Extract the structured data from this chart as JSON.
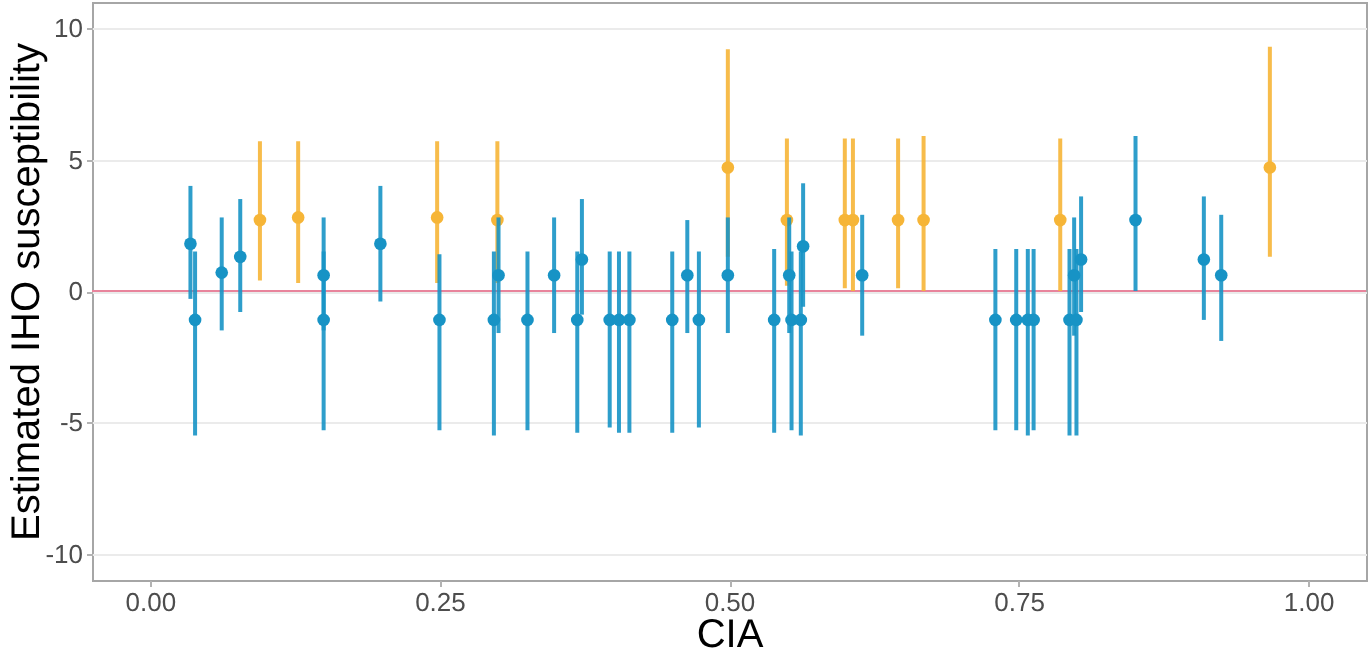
{
  "chart_data": {
    "type": "scatter",
    "xlabel": "CIA",
    "ylabel": "Estimated IHO susceptibility",
    "xlim": [
      -0.05,
      1.05
    ],
    "ylim": [
      -11,
      11
    ],
    "xticks": [
      {
        "value": 0,
        "label": "0.00"
      },
      {
        "value": 0.25,
        "label": "0.25"
      },
      {
        "value": 0.5,
        "label": "0.50"
      },
      {
        "value": 0.75,
        "label": "0.75"
      },
      {
        "value": 1,
        "label": "1.00"
      }
    ],
    "yticks": [
      -10,
      -5,
      0,
      5,
      10
    ],
    "grid": "y",
    "marker": "circle",
    "ref_lines": [
      {
        "axis": "y",
        "value": 0,
        "color": "#e8849c"
      }
    ],
    "series": [
      {
        "color": "#f6b537",
        "x": [
          0.095,
          0.128,
          0.248,
          0.3,
          0.499,
          0.55,
          0.6,
          0.607,
          0.646,
          0.668,
          0.786,
          0.967
        ],
        "values": [
          2.7,
          2.8,
          2.8,
          2.7,
          4.7,
          2.7,
          2.7,
          2.7,
          2.7,
          2.7,
          2.7,
          4.7
        ],
        "errors": [
          [
            0.4,
            5.7
          ],
          [
            0.3,
            5.7
          ],
          [
            0.3,
            5.7
          ],
          [
            0.3,
            5.7
          ],
          [
            1.3,
            9.2
          ],
          [
            0.2,
            5.8
          ],
          [
            0.1,
            5.8
          ],
          [
            0.0,
            5.8
          ],
          [
            0.1,
            5.8
          ],
          [
            0.0,
            5.9
          ],
          [
            0.0,
            5.8
          ],
          [
            1.3,
            9.3
          ]
        ]
      },
      {
        "color": "#1793c5",
        "x": [
          0.035,
          0.039,
          0.062,
          0.078,
          0.15,
          0.15,
          0.199,
          0.25,
          0.297,
          0.301,
          0.326,
          0.349,
          0.369,
          0.373,
          0.397,
          0.405,
          0.414,
          0.451,
          0.464,
          0.474,
          0.499,
          0.539,
          0.552,
          0.554,
          0.562,
          0.564,
          0.615,
          0.73,
          0.748,
          0.758,
          0.763,
          0.794,
          0.798,
          0.8,
          0.804,
          0.851,
          0.91,
          0.925
        ],
        "values": [
          1.8,
          -1.1,
          0.7,
          1.3,
          0.6,
          -1.1,
          1.8,
          -1.1,
          -1.1,
          0.6,
          -1.1,
          0.6,
          -1.1,
          1.2,
          -1.1,
          -1.1,
          -1.1,
          -1.1,
          0.6,
          -1.1,
          0.6,
          -1.1,
          0.6,
          -1.1,
          -1.1,
          1.7,
          0.6,
          -1.1,
          -1.1,
          -1.1,
          -1.1,
          -1.1,
          0.6,
          -1.1,
          1.2,
          2.7,
          1.2,
          0.6
        ],
        "errors": [
          [
            -0.3,
            4.0
          ],
          [
            -5.5,
            1.5
          ],
          [
            -1.5,
            2.8
          ],
          [
            -0.8,
            3.5
          ],
          [
            -1.5,
            2.8
          ],
          [
            -5.3,
            1.5
          ],
          [
            -0.4,
            4.0
          ],
          [
            -5.3,
            1.4
          ],
          [
            -5.5,
            1.5
          ],
          [
            -1.6,
            2.8
          ],
          [
            -5.3,
            1.5
          ],
          [
            -1.6,
            2.8
          ],
          [
            -5.4,
            1.5
          ],
          [
            -0.9,
            3.5
          ],
          [
            -5.2,
            1.5
          ],
          [
            -5.4,
            1.5
          ],
          [
            -5.4,
            1.5
          ],
          [
            -5.4,
            1.5
          ],
          [
            -1.6,
            2.7
          ],
          [
            -5.2,
            1.5
          ],
          [
            -1.6,
            2.8
          ],
          [
            -5.4,
            1.6
          ],
          [
            -1.6,
            2.8
          ],
          [
            -5.3,
            1.5
          ],
          [
            -5.5,
            1.5
          ],
          [
            -0.6,
            4.1
          ],
          [
            -1.7,
            2.9
          ],
          [
            -5.3,
            1.6
          ],
          [
            -5.3,
            1.6
          ],
          [
            -5.5,
            1.6
          ],
          [
            -5.3,
            1.6
          ],
          [
            -5.5,
            1.6
          ],
          [
            -1.7,
            2.8
          ],
          [
            -5.5,
            1.6
          ],
          [
            -0.8,
            3.6
          ],
          [
            0.0,
            5.9
          ],
          [
            -1.1,
            3.6
          ],
          [
            -1.9,
            2.9
          ]
        ]
      }
    ]
  }
}
